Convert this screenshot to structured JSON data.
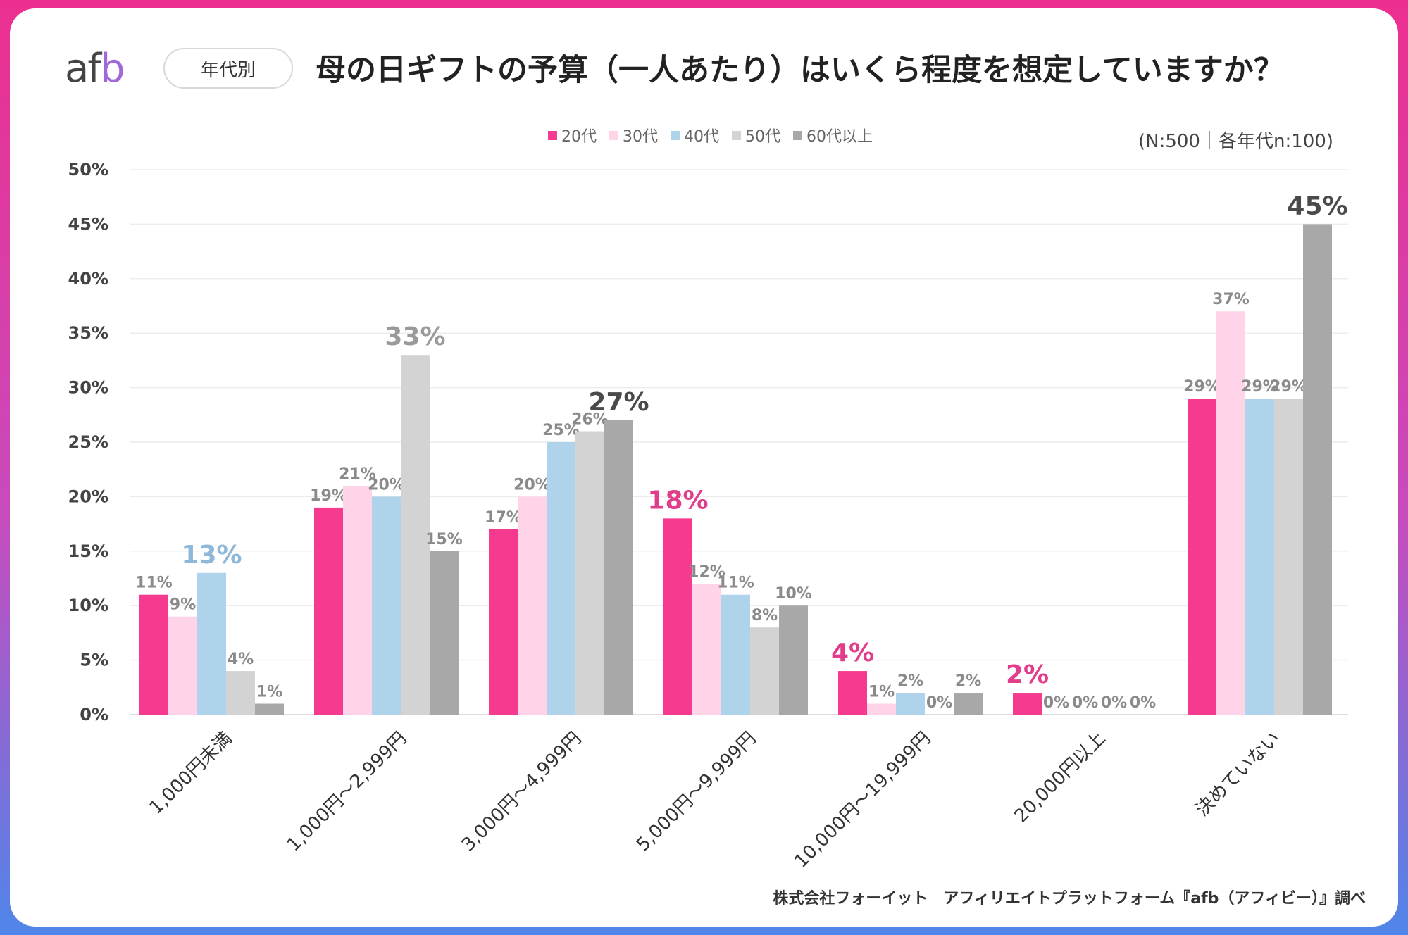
{
  "header": {
    "logo_text_a": "af",
    "logo_text_b": "b",
    "badge": "年代別",
    "title": "母の日ギフトの予算（一人あたり）はいくら程度を想定していますか？",
    "sample": "(N:500｜各年代n:100)"
  },
  "footer": {
    "source": "株式会社フォーイット　アフィリエイトプラットフォーム『afb（アフィビー）』調べ"
  },
  "colors": {
    "s20": "#f63a8f",
    "s30": "#ffd4e8",
    "s40": "#aed3ea",
    "s50": "#d3d3d3",
    "s60": "#a8a8a8",
    "grid": "#ececec",
    "axis_text": "#444444",
    "label_text": "#8a8a8a"
  },
  "chart_data": {
    "type": "bar",
    "title": "母の日ギフトの予算（一人あたり）はいくら程度を想定していますか？",
    "xlabel": "",
    "ylabel": "",
    "ylim": [
      0,
      50
    ],
    "yticks": [
      "0%",
      "5%",
      "10%",
      "15%",
      "20%",
      "25%",
      "30%",
      "35%",
      "40%",
      "45%",
      "50%"
    ],
    "categories": [
      "1,000円未満",
      "1,000円～2,999円",
      "3,000円～4,999円",
      "5,000円～9,999円",
      "10,000円～19,999円",
      "20,000円以上",
      "決めていない"
    ],
    "series": [
      {
        "name": "20代",
        "values": [
          11,
          19,
          17,
          18,
          4,
          2,
          29
        ]
      },
      {
        "name": "30代",
        "values": [
          9,
          21,
          20,
          12,
          1,
          0,
          37
        ]
      },
      {
        "name": "40代",
        "values": [
          13,
          20,
          25,
          11,
          2,
          0,
          29
        ]
      },
      {
        "name": "50代",
        "values": [
          4,
          33,
          26,
          8,
          0,
          0,
          29
        ]
      },
      {
        "name": "60代以上",
        "values": [
          1,
          15,
          27,
          10,
          2,
          0,
          45
        ]
      }
    ],
    "highlights": [
      {
        "category": 0,
        "series": 2
      },
      {
        "category": 1,
        "series": 3
      },
      {
        "category": 2,
        "series": 4
      },
      {
        "category": 3,
        "series": 0
      },
      {
        "category": 4,
        "series": 0
      },
      {
        "category": 5,
        "series": 0
      },
      {
        "category": 6,
        "series": 4
      }
    ],
    "grid": true,
    "legend_position": "top-center"
  }
}
